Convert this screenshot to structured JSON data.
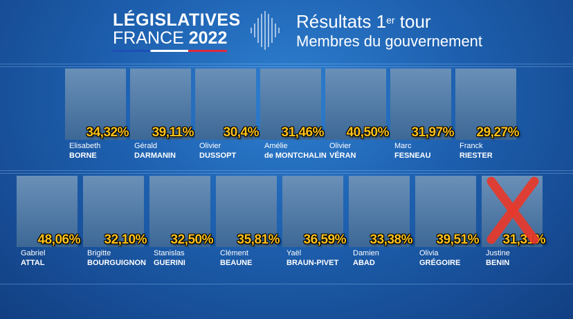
{
  "header": {
    "logo_line1": "LÉGISLATIVES",
    "logo_line2_a": "FRANCE",
    "logo_line2_b": "2022",
    "title_main": "Résultats 1",
    "title_sup": "er",
    "title_end": " tour",
    "subtitle": "Membres du gouvernement"
  },
  "colors": {
    "background": "#1d5fae",
    "percent": "#ffc21a",
    "cross": "#e8392b",
    "flag_blue": "#1e4fb8",
    "flag_red": "#e0283a"
  },
  "row1": [
    {
      "first": "Elisabeth",
      "last": "BORNE",
      "percent": "34,32%"
    },
    {
      "first": "Gérald",
      "last": "DARMANIN",
      "percent": "39,11%"
    },
    {
      "first": "Olivier",
      "last": "DUSSOPT",
      "percent": "30,4%"
    },
    {
      "first": "Amélie",
      "last": "de MONTCHALIN",
      "percent": "31,46%"
    },
    {
      "first": "Olivier",
      "last": "VÉRAN",
      "percent": "40,50%"
    },
    {
      "first": "Marc",
      "last": "FESNEAU",
      "percent": "31,97%"
    },
    {
      "first": "Franck",
      "last": "RIESTER",
      "percent": "29,27%"
    }
  ],
  "row2": [
    {
      "first": "Gabriel",
      "last": "ATTAL",
      "percent": "48,06%"
    },
    {
      "first": "Brigitte",
      "last": "BOURGUIGNON",
      "percent": "32,10%"
    },
    {
      "first": "Stanislas",
      "last": "GUERINI",
      "percent": "32,50%"
    },
    {
      "first": "Clément",
      "last": "BEAUNE",
      "percent": "35,81%"
    },
    {
      "first": "Yaël",
      "last": "BRAUN-PIVET",
      "percent": "36,59%"
    },
    {
      "first": "Damien",
      "last": "ABAD",
      "percent": "33,38%"
    },
    {
      "first": "Olivia",
      "last": "GRÉGOIRE",
      "percent": "39,51%"
    },
    {
      "first": "Justine",
      "last": "BENIN",
      "percent": "31,31%",
      "eliminated": true
    }
  ]
}
